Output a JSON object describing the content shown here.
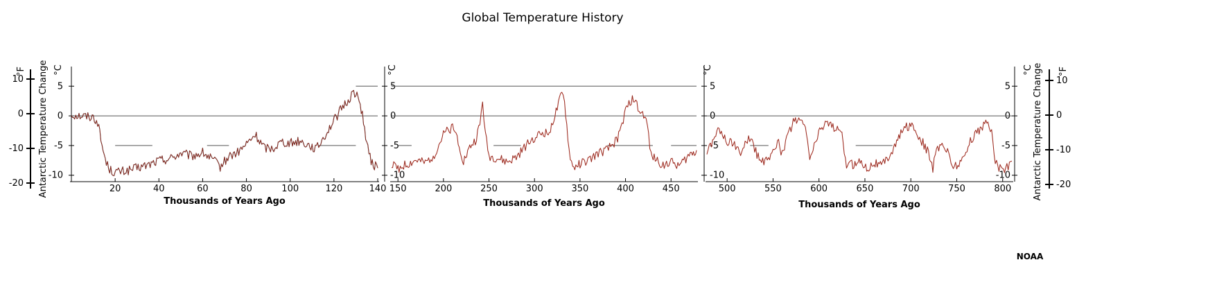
{
  "chart_data": {
    "type": "line",
    "title": "Global Temperature History",
    "credit": "NOAA",
    "xlabel": "Thousands of Years Ago",
    "ylabel": "Antarctic Temperature Change",
    "units": {
      "celsius": "°C",
      "fahrenheit": "°F"
    },
    "celsius_ticks": [
      5,
      0,
      -5,
      -10
    ],
    "fahrenheit_ticks": [
      10,
      0,
      -10,
      -20
    ],
    "reference_lines": [
      0,
      5,
      -5
    ],
    "line_colors": {
      "dark": "#2a1414",
      "red": "#c0392b"
    },
    "panels": [
      {
        "xlim": [
          0,
          140
        ],
        "xticks": [
          20,
          40,
          60,
          80,
          100,
          120,
          140
        ],
        "ylim": [
          -10.5,
          5.5
        ],
        "series_points": [
          [
            0,
            0.2
          ],
          [
            5,
            0.0
          ],
          [
            10,
            -0.2
          ],
          [
            12,
            -1
          ],
          [
            14,
            -5
          ],
          [
            16,
            -8
          ],
          [
            18,
            -9.2
          ],
          [
            20,
            -9.5
          ],
          [
            25,
            -9.3
          ],
          [
            30,
            -8.8
          ],
          [
            35,
            -8.3
          ],
          [
            40,
            -7.5
          ],
          [
            45,
            -7.2
          ],
          [
            50,
            -6.3
          ],
          [
            55,
            -6.8
          ],
          [
            60,
            -6.2
          ],
          [
            65,
            -7.5
          ],
          [
            68,
            -8.6
          ],
          [
            72,
            -6.8
          ],
          [
            76,
            -6.2
          ],
          [
            80,
            -4.8
          ],
          [
            84,
            -3.2
          ],
          [
            88,
            -5.3
          ],
          [
            92,
            -5.5
          ],
          [
            96,
            -4.3
          ],
          [
            100,
            -4.6
          ],
          [
            104,
            -4.2
          ],
          [
            108,
            -4.8
          ],
          [
            112,
            -5.6
          ],
          [
            116,
            -3.2
          ],
          [
            120,
            -0.8
          ],
          [
            124,
            1.5
          ],
          [
            127,
            2.8
          ],
          [
            129,
            4.2
          ],
          [
            131,
            3.0
          ],
          [
            133,
            0.5
          ],
          [
            135,
            -4.8
          ],
          [
            137,
            -7.8
          ],
          [
            140,
            -8.8
          ]
        ]
      },
      {
        "xlim": [
          143,
          478
        ],
        "xticks": [
          150,
          200,
          250,
          300,
          350,
          400,
          450
        ],
        "ylim": [
          -10.5,
          5.5
        ],
        "series_points": [
          [
            143,
            -8.3
          ],
          [
            150,
            -8.8
          ],
          [
            160,
            -8.2
          ],
          [
            170,
            -7.5
          ],
          [
            180,
            -8.0
          ],
          [
            190,
            -6.5
          ],
          [
            200,
            -3.2
          ],
          [
            210,
            -1.8
          ],
          [
            215,
            -3.5
          ],
          [
            222,
            -7.6
          ],
          [
            230,
            -5.0
          ],
          [
            235,
            -4.2
          ],
          [
            240,
            -1.6
          ],
          [
            243,
            2.5
          ],
          [
            246,
            -3.2
          ],
          [
            250,
            -6.8
          ],
          [
            260,
            -7.2
          ],
          [
            270,
            -7.8
          ],
          [
            280,
            -7.0
          ],
          [
            290,
            -5.2
          ],
          [
            300,
            -3.6
          ],
          [
            310,
            -2.8
          ],
          [
            315,
            -3.0
          ],
          [
            320,
            -1.0
          ],
          [
            325,
            1.2
          ],
          [
            330,
            3.7
          ],
          [
            333,
            2.5
          ],
          [
            338,
            -5.8
          ],
          [
            342,
            -8.8
          ],
          [
            350,
            -8.0
          ],
          [
            360,
            -7.5
          ],
          [
            370,
            -6.3
          ],
          [
            380,
            -5.8
          ],
          [
            390,
            -4.2
          ],
          [
            395,
            -2.2
          ],
          [
            400,
            0.8
          ],
          [
            405,
            2.5
          ],
          [
            410,
            2.8
          ],
          [
            415,
            0.7
          ],
          [
            420,
            0.2
          ],
          [
            424,
            -1.6
          ],
          [
            428,
            -6.8
          ],
          [
            435,
            -7.5
          ],
          [
            440,
            -8.2
          ],
          [
            450,
            -7.8
          ],
          [
            460,
            -8.3
          ],
          [
            470,
            -6.6
          ],
          [
            478,
            -5.8
          ]
        ]
      },
      {
        "xlim": [
          478,
          810
        ],
        "xticks": [
          500,
          550,
          600,
          650,
          700,
          750,
          800
        ],
        "ylim": [
          -10.5,
          5.5
        ],
        "series_points": [
          [
            478,
            -5.8
          ],
          [
            483,
            -4.6
          ],
          [
            490,
            -1.8
          ],
          [
            495,
            -3.4
          ],
          [
            502,
            -4.6
          ],
          [
            508,
            -4.6
          ],
          [
            512,
            -5.8
          ],
          [
            516,
            -6.5
          ],
          [
            522,
            -4.0
          ],
          [
            526,
            -3.4
          ],
          [
            530,
            -5.8
          ],
          [
            535,
            -7.0
          ],
          [
            540,
            -7.6
          ],
          [
            545,
            -7.8
          ],
          [
            550,
            -5.3
          ],
          [
            556,
            -4.6
          ],
          [
            560,
            -6.6
          ],
          [
            566,
            -3.4
          ],
          [
            572,
            -1.0
          ],
          [
            578,
            -1.0
          ],
          [
            584,
            -1.2
          ],
          [
            590,
            -7.0
          ],
          [
            596,
            -4.6
          ],
          [
            602,
            -2.0
          ],
          [
            608,
            -1.0
          ],
          [
            614,
            -1.5
          ],
          [
            620,
            -2.4
          ],
          [
            625,
            -3.5
          ],
          [
            630,
            -8.3
          ],
          [
            638,
            -8.2
          ],
          [
            646,
            -7.5
          ],
          [
            652,
            -8.8
          ],
          [
            660,
            -7.8
          ],
          [
            668,
            -8.4
          ],
          [
            674,
            -7.2
          ],
          [
            680,
            -5.8
          ],
          [
            688,
            -3.4
          ],
          [
            694,
            -1.8
          ],
          [
            700,
            -1.8
          ],
          [
            706,
            -2.6
          ],
          [
            712,
            -4.2
          ],
          [
            718,
            -6.0
          ],
          [
            724,
            -8.8
          ],
          [
            728,
            -5.8
          ],
          [
            734,
            -4.6
          ],
          [
            740,
            -6.0
          ],
          [
            745,
            -8.4
          ],
          [
            750,
            -8.2
          ],
          [
            756,
            -7.6
          ],
          [
            760,
            -6.2
          ],
          [
            766,
            -4.0
          ],
          [
            772,
            -2.6
          ],
          [
            778,
            -2.0
          ],
          [
            784,
            -0.6
          ],
          [
            788,
            -3.0
          ],
          [
            792,
            -7.4
          ],
          [
            796,
            -8.8
          ],
          [
            802,
            -8.9
          ],
          [
            806,
            -8.6
          ],
          [
            810,
            -7.6
          ]
        ]
      }
    ]
  }
}
